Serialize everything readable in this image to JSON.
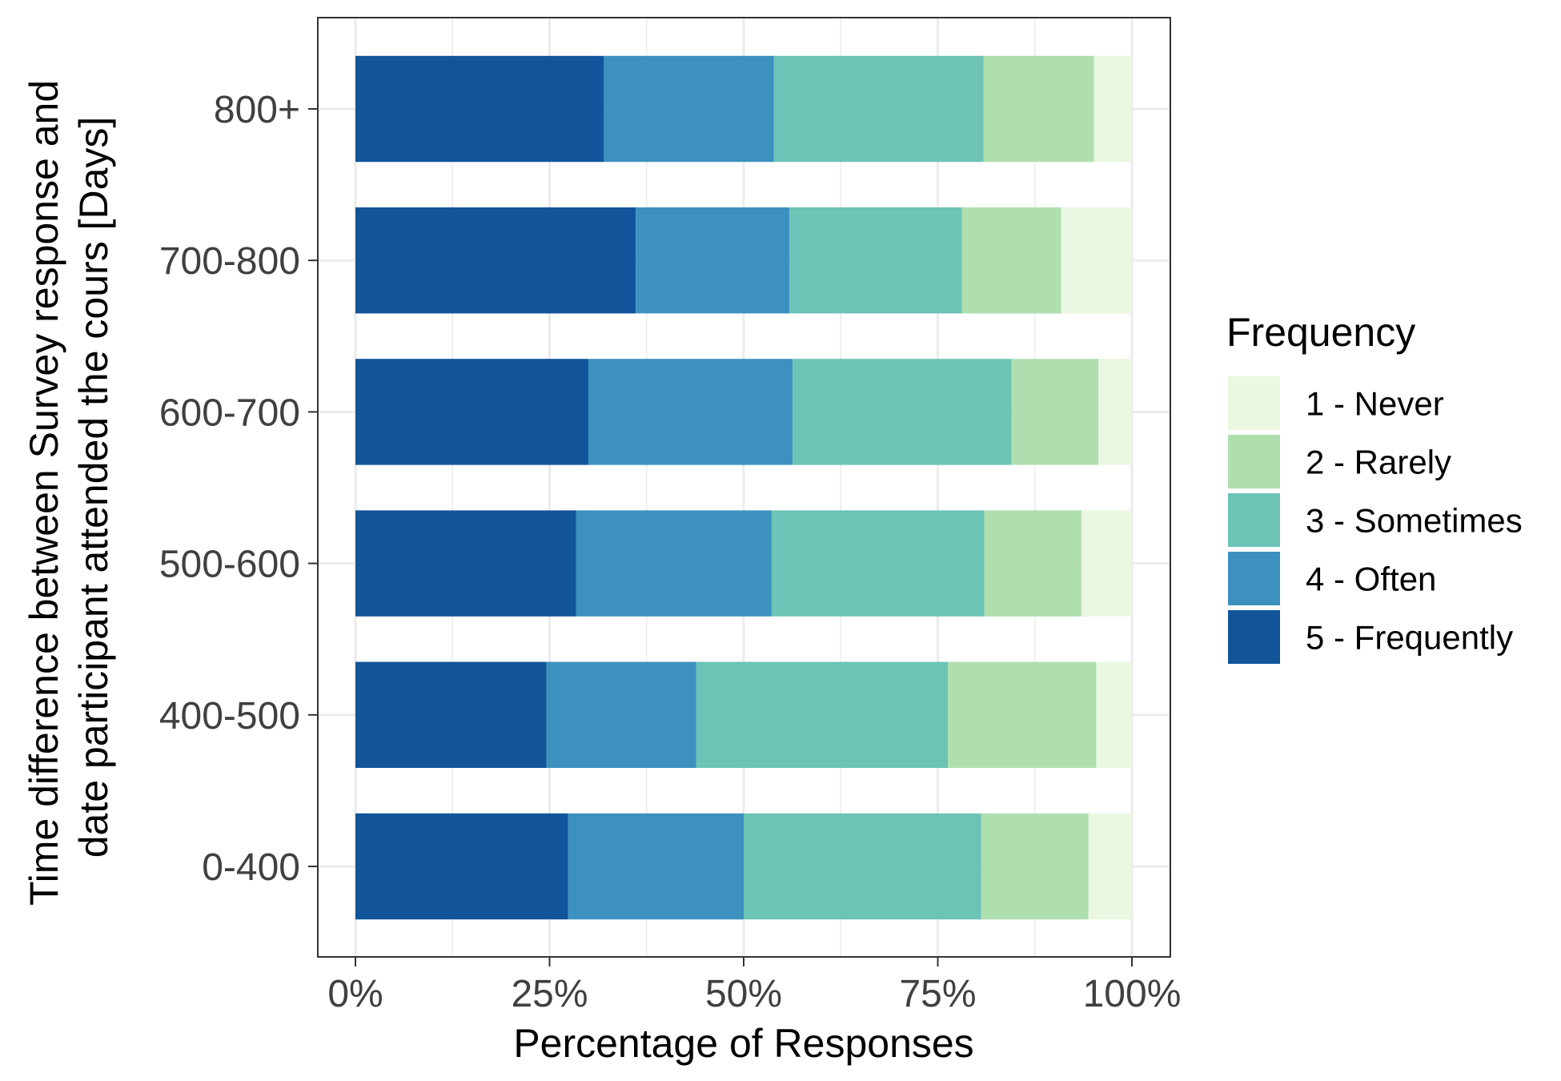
{
  "chart_data": {
    "type": "bar",
    "orientation": "horizontal",
    "stacked": "percent",
    "xlabel": "Percentage of Responses",
    "ylabel_lines": [
      "Time difference between Survey response and",
      "date participant attended the cours [Days]"
    ],
    "xlim": [
      0,
      100
    ],
    "x_ticks": [
      0,
      25,
      50,
      75,
      100
    ],
    "x_tick_labels": [
      "0%",
      "25%",
      "50%",
      "75%",
      "100%"
    ],
    "categories": [
      "0-400",
      "400-500",
      "500-600",
      "600-700",
      "700-800",
      "800+"
    ],
    "series": [
      {
        "name": "5 - Frequently",
        "color": "#11549a",
        "values": [
          27.4,
          24.6,
          28.4,
          30.0,
          36.1,
          32.0
        ]
      },
      {
        "name": "4 - Often",
        "color": "#3c91bf",
        "values": [
          22.6,
          19.3,
          25.2,
          26.3,
          19.8,
          21.9
        ]
      },
      {
        "name": "3 - Sometimes",
        "color": "#6cc3b6",
        "values": [
          30.6,
          32.4,
          27.4,
          28.2,
          22.2,
          27.0
        ]
      },
      {
        "name": "2 - Rarely",
        "color": "#afdfae",
        "values": [
          13.8,
          19.1,
          12.5,
          11.2,
          12.8,
          14.2
        ]
      },
      {
        "name": "1 - Never",
        "color": "#eaf7e1",
        "values": [
          5.6,
          4.6,
          6.5,
          4.3,
          9.1,
          4.9
        ]
      }
    ],
    "legend": {
      "title": "Frequency",
      "position": "right",
      "order": [
        "1 - Never",
        "2 - Rarely",
        "3 - Sometimes",
        "4 - Often",
        "5 - Frequently"
      ]
    },
    "grid": true,
    "theme": "bw"
  }
}
